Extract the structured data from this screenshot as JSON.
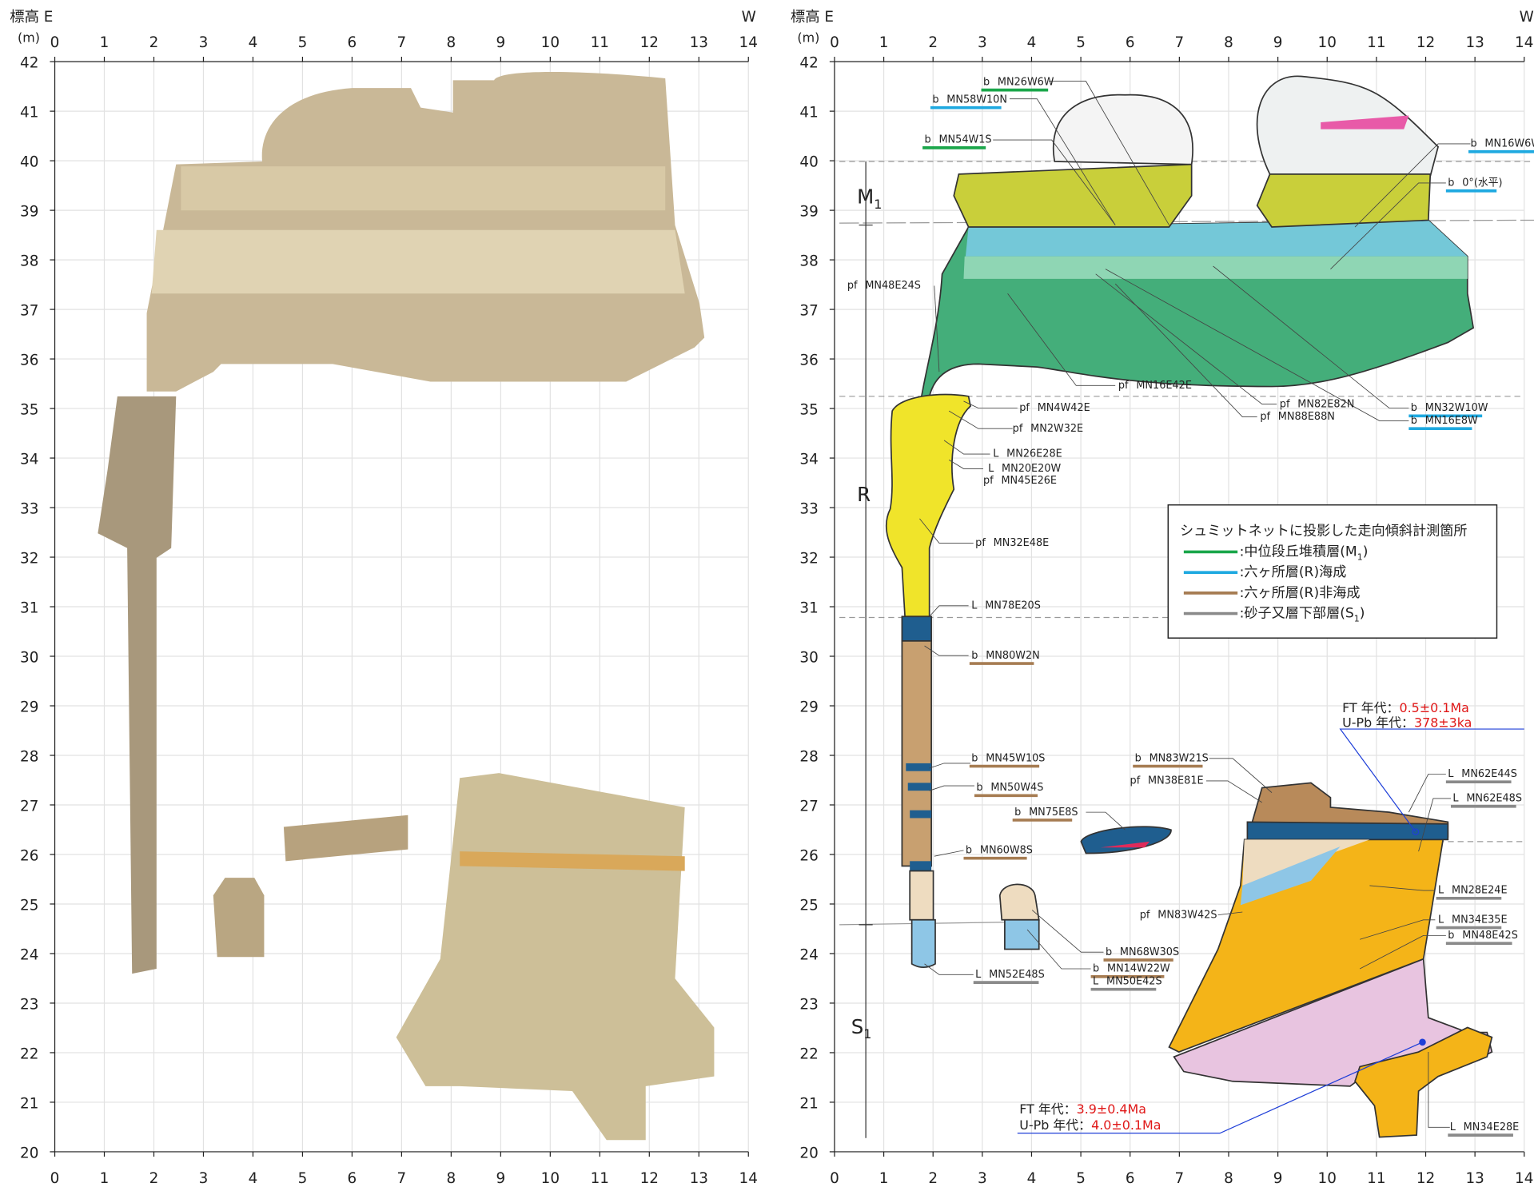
{
  "axes": {
    "elevation_label": "標高 E",
    "unit_label": "(m)",
    "west_label": "W",
    "x_ticks": [
      0,
      1,
      2,
      3,
      4,
      5,
      6,
      7,
      8,
      9,
      10,
      11,
      12,
      13,
      14
    ],
    "y_ticks": [
      20,
      21,
      22,
      23,
      24,
      25,
      26,
      27,
      28,
      29,
      30,
      31,
      32,
      33,
      34,
      35,
      36,
      37,
      38,
      39,
      40,
      41,
      42
    ]
  },
  "units": [
    {
      "name": "M",
      "sub": "1"
    },
    {
      "name": "R"
    },
    {
      "name": "S",
      "sub": "1"
    }
  ],
  "annotations": [
    {
      "prefix": "b",
      "code": "MN26W6W",
      "underline": "#1aa64a"
    },
    {
      "prefix": "b",
      "code": "MN58W10N",
      "underline": "#1ea9e0"
    },
    {
      "prefix": "b",
      "code": "MN54W1S",
      "underline": "#1aa64a"
    },
    {
      "prefix": "b",
      "code": "MN16W6W",
      "underline": "#1ea9e0"
    },
    {
      "prefix": "b",
      "code": "0°(水平)",
      "underline": "#1ea9e0"
    },
    {
      "prefix": "pf",
      "code": "MN48E24S"
    },
    {
      "prefix": "pf",
      "code": "MN16E42E"
    },
    {
      "prefix": "pf",
      "code": "MN4W42E"
    },
    {
      "prefix": "pf",
      "code": "MN82E82N"
    },
    {
      "prefix": "pf",
      "code": "MN88E88N"
    },
    {
      "prefix": "b",
      "code": "MN32W10W",
      "underline": "#1ea9e0"
    },
    {
      "prefix": "b",
      "code": "MN16E8W",
      "underline": "#1ea9e0"
    },
    {
      "prefix": "pf",
      "code": "MN2W32E"
    },
    {
      "prefix": "L",
      "code": "MN26E28E"
    },
    {
      "prefix": "L",
      "code": "MN20E20W"
    },
    {
      "prefix": "pf",
      "code": "MN45E26E"
    },
    {
      "prefix": "pf",
      "code": "MN32E48E"
    },
    {
      "prefix": "L",
      "code": "MN78E20S"
    },
    {
      "prefix": "b",
      "code": "MN80W2N",
      "underline": "#a67c52"
    },
    {
      "prefix": "b",
      "code": "MN45W10S",
      "underline": "#a67c52"
    },
    {
      "prefix": "b",
      "code": "MN50W4S",
      "underline": "#a67c52"
    },
    {
      "prefix": "b",
      "code": "MN75E8S",
      "underline": "#a67c52"
    },
    {
      "prefix": "b",
      "code": "MN60W8S",
      "underline": "#a67c52"
    },
    {
      "prefix": "b",
      "code": "MN83W21S",
      "underline": "#a67c52"
    },
    {
      "prefix": "pf",
      "code": "MN38E81E"
    },
    {
      "prefix": "pf",
      "code": "MN83W42S"
    },
    {
      "prefix": "b",
      "code": "MN68W30S",
      "underline": "#a67c52"
    },
    {
      "prefix": "b",
      "code": "MN14W22W",
      "underline": "#a67c52"
    },
    {
      "prefix": "L",
      "code": "MN50E42S",
      "underline": "#8a8a8a"
    },
    {
      "prefix": "L",
      "code": "MN52E48S",
      "underline": "#8a8a8a"
    },
    {
      "prefix": "L",
      "code": "MN62E44S",
      "underline": "#8a8a8a"
    },
    {
      "prefix": "L",
      "code": "MN62E48S",
      "underline": "#8a8a8a"
    },
    {
      "prefix": "L",
      "code": "MN28E24E",
      "underline": "#8a8a8a"
    },
    {
      "prefix": "L",
      "code": "MN34E35E",
      "underline": "#8a8a8a"
    },
    {
      "prefix": "b",
      "code": "MN48E42S",
      "underline": "#8a8a8a"
    },
    {
      "prefix": "L",
      "code": "MN34E28E",
      "underline": "#8a8a8a"
    }
  ],
  "legend": {
    "title": "シュミットネットに投影した走向傾斜計測箇所",
    "items": [
      {
        "label": ":中位段丘堆積層(M",
        "sub": "1",
        "end": ")",
        "color": "#1aa64a"
      },
      {
        "label": ":六ヶ所層(R)海成",
        "color": "#1ea9e0"
      },
      {
        "label": ":六ヶ所層(R)非海成",
        "color": "#a67c52"
      },
      {
        "label": ":砂子又層下部層(S",
        "sub": "1",
        "end": ")",
        "color": "#8a8a8a"
      }
    ]
  },
  "ages": [
    {
      "method": "FT 年代：",
      "value": "0.5±0.1Ma"
    },
    {
      "method": "U-Pb 年代：",
      "value": "378±3ka"
    },
    {
      "method": "FT 年代：",
      "value": "3.9±0.4Ma"
    },
    {
      "method": "U-Pb 年代：",
      "value": "4.0±0.1Ma"
    }
  ]
}
